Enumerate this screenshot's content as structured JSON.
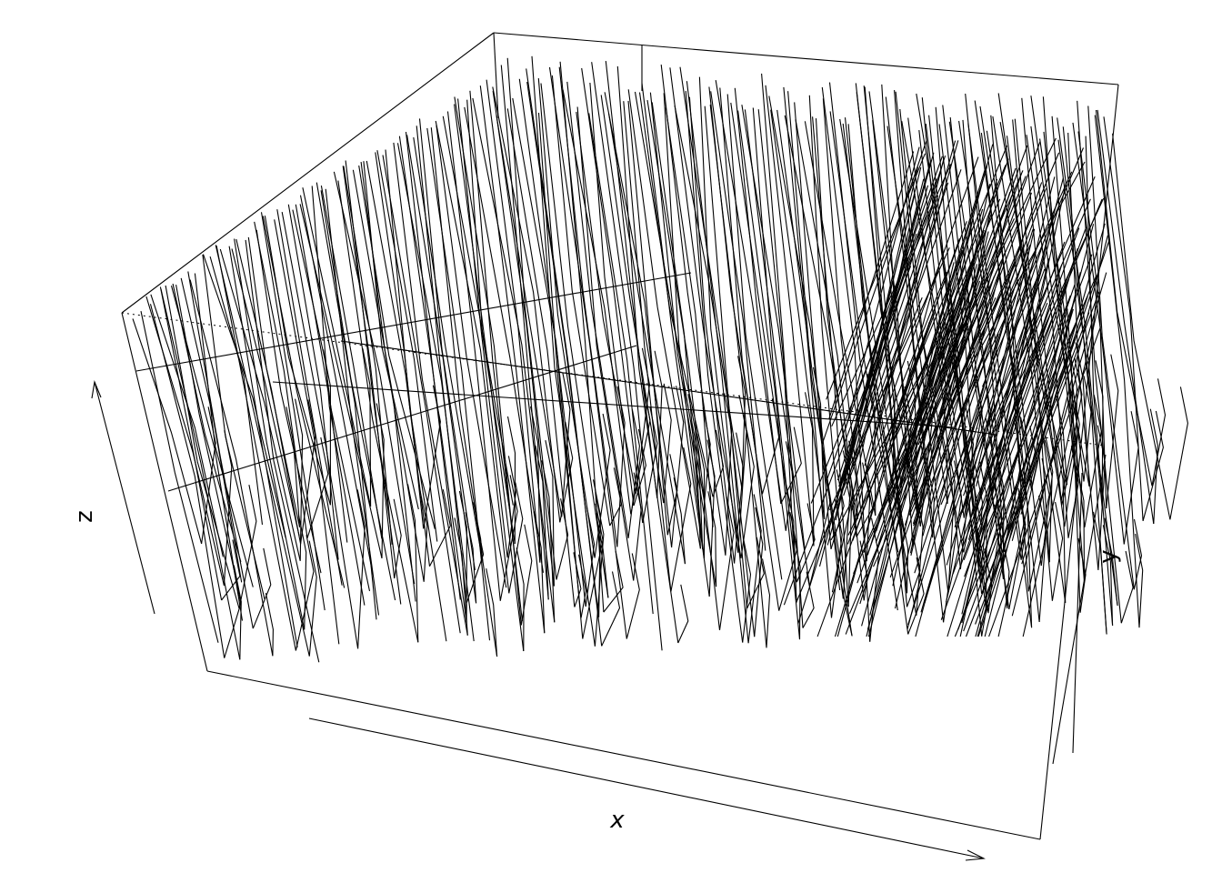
{
  "chart_data": {
    "type": "surface",
    "title": "",
    "xlabel": "x",
    "ylabel": "y",
    "zlabel": "z",
    "ticks_shown": false,
    "grid": false,
    "legend": "none",
    "colors": {
      "line": "#000000",
      "fill": "#ffffff",
      "background": "#ffffff"
    }
  }
}
